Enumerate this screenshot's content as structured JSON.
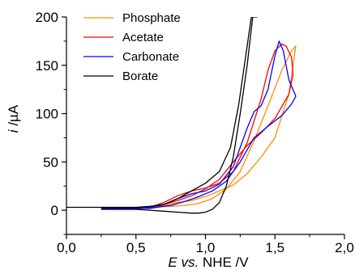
{
  "chart_data": {
    "type": "line",
    "xlabel": {
      "italic": "E vs.",
      "rest": " NHE /V"
    },
    "ylabel": {
      "italic": "i",
      "rest": " /µA"
    },
    "xlim": [
      0,
      2.0
    ],
    "ylim": [
      -25,
      200
    ],
    "xticks": [
      0,
      0.5,
      1.0,
      1.5,
      2.0
    ],
    "xtick_labels": [
      "0,0",
      "0,5",
      "1,0",
      "1,5",
      "2,0"
    ],
    "yticks": [
      0,
      50,
      100,
      150,
      200
    ],
    "ytick_labels": [
      "0",
      "50",
      "100",
      "150",
      "200"
    ],
    "grid": false,
    "legend_position": "top-left",
    "series": [
      {
        "name": "Phosphate",
        "color": "#ff8c00",
        "x": [
          0.25,
          0.6,
          0.75,
          0.85,
          0.95,
          1.05,
          1.15,
          1.25,
          1.35,
          1.45,
          1.55,
          1.62,
          1.65,
          1.6,
          1.5,
          1.4,
          1.3,
          1.2,
          1.1,
          1.0,
          0.9,
          0.8,
          0.7,
          0.65,
          0.6,
          0.5,
          0.25
        ],
        "y": [
          2,
          3,
          4,
          5,
          7,
          12,
          22,
          40,
          72,
          108,
          145,
          165,
          170,
          120,
          75,
          55,
          38,
          26,
          20,
          14,
          10,
          8,
          5,
          3,
          2,
          2,
          2
        ]
      },
      {
        "name": "Acetate",
        "color": "#ff0000",
        "x": [
          0.25,
          0.6,
          0.7,
          0.8,
          0.9,
          1.0,
          1.1,
          1.2,
          1.3,
          1.4,
          1.45,
          1.5,
          1.55,
          1.58,
          1.62,
          1.63,
          1.6,
          1.5,
          1.4,
          1.3,
          1.2,
          1.1,
          1.0,
          0.9,
          0.8,
          0.7,
          0.65,
          0.6,
          0.5,
          0.25
        ],
        "y": [
          2,
          3,
          8,
          15,
          20,
          23,
          28,
          40,
          70,
          115,
          145,
          165,
          172,
          170,
          158,
          140,
          120,
          95,
          80,
          67,
          50,
          32,
          22,
          15,
          10,
          6,
          3,
          2,
          2,
          2
        ]
      },
      {
        "name": "Carbonate",
        "color": "#0000ff",
        "x": [
          0.25,
          0.6,
          0.7,
          0.8,
          0.9,
          1.0,
          1.1,
          1.2,
          1.3,
          1.35,
          1.4,
          1.45,
          1.5,
          1.53,
          1.56,
          1.6,
          1.65,
          1.62,
          1.55,
          1.45,
          1.35,
          1.25,
          1.15,
          1.05,
          0.95,
          0.85,
          0.75,
          0.65,
          0.6,
          0.5,
          0.25
        ],
        "y": [
          2,
          3,
          6,
          12,
          17,
          20,
          27,
          45,
          85,
          102,
          108,
          125,
          160,
          175,
          165,
          135,
          118,
          110,
          98,
          87,
          75,
          50,
          30,
          20,
          14,
          9,
          5,
          3,
          2,
          2,
          2
        ]
      },
      {
        "name": "Borate",
        "color": "#000000",
        "x": [
          0.0,
          0.5,
          0.6,
          0.7,
          0.8,
          0.9,
          1.0,
          1.1,
          1.18,
          1.24,
          1.3,
          1.33,
          1.35,
          1.37,
          1.34,
          1.3,
          1.25,
          1.2,
          1.15,
          1.1,
          1.05,
          1.0,
          0.95,
          0.9,
          0.8,
          0.7,
          0.6,
          0.5,
          0.25
        ],
        "y": [
          3,
          3,
          4,
          6,
          12,
          20,
          28,
          40,
          65,
          110,
          170,
          200,
          200,
          200,
          200,
          150,
          100,
          55,
          25,
          8,
          1,
          -2,
          -3,
          -3,
          -2,
          -1,
          0,
          1,
          1
        ]
      }
    ]
  }
}
